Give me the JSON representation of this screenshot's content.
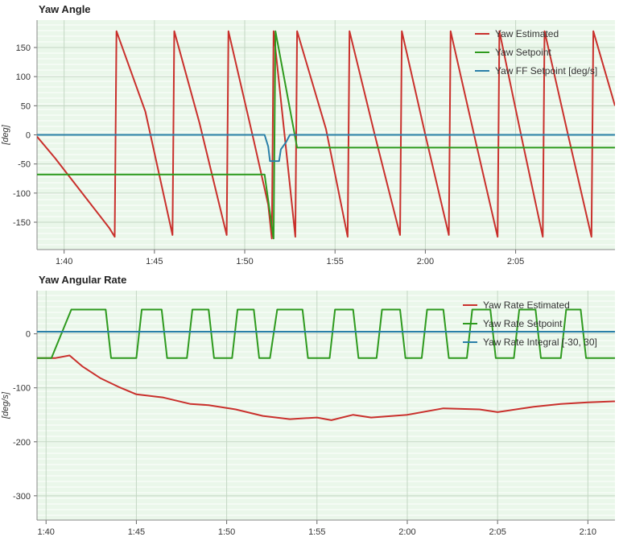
{
  "chart_data": [
    {
      "type": "line",
      "title": "Yaw Angle",
      "ylabel": "[deg]",
      "xlabel": "",
      "xlim": [
        "1:38.5",
        "2:10.5"
      ],
      "ylim": [
        -197,
        197
      ],
      "yticks": [
        150,
        100,
        50,
        0,
        -50,
        -100,
        -150
      ],
      "xticks": [
        "1:40",
        "1:45",
        "1:50",
        "1:55",
        "2:00",
        "2:05"
      ],
      "grid": true,
      "legend_position": "top-right",
      "series": [
        {
          "name": "Yaw Estimated",
          "color": "#c9302c",
          "x": [
            "1:38.5",
            "1:39.5",
            "1:40.5",
            "1:41.5",
            "1:42.5",
            "1:42.8",
            "1:42.9",
            "1:44.5",
            "1:46.0",
            "1:46.1",
            "1:47.5",
            "1:49.0",
            "1:49.1",
            "1:50.5",
            "1:51.3",
            "1:51.5",
            "1:51.6",
            "1:52.8",
            "1:52.9",
            "1:54.5",
            "1:55.7",
            "1:55.8",
            "1:57.2",
            "1:58.6",
            "1:58.7",
            "2:00.0",
            "2:01.3",
            "2:01.4",
            "2:02.7",
            "2:04.0",
            "2:04.1",
            "2:05.3",
            "2:06.5",
            "2:06.6",
            "2:07.9",
            "2:09.2",
            "2:09.3",
            "2:10.5"
          ],
          "y": [
            -3,
            -40,
            -80,
            -120,
            -160,
            -175,
            178,
            40,
            -172,
            178,
            20,
            -172,
            178,
            -10,
            -120,
            -178,
            178,
            -175,
            178,
            10,
            -175,
            178,
            0,
            -172,
            178,
            0,
            -172,
            178,
            0,
            -175,
            178,
            0,
            -175,
            178,
            0,
            -175,
            178,
            50
          ]
        },
        {
          "name": "Yaw Setpoint",
          "color": "#2e9a1e",
          "x": [
            "1:38.5",
            "1:51.1",
            "1:51.6",
            "1:51.7",
            "1:52.9",
            "2:10.5"
          ],
          "y": [
            -68,
            -68,
            -178,
            178,
            -22,
            -22
          ]
        },
        {
          "name": "Yaw FF Setpoint [deg/s]",
          "color": "#2a7fa8",
          "x": [
            "1:38.5",
            "1:51.1",
            "1:51.3",
            "1:51.4",
            "1:51.9",
            "1:52.0",
            "1:52.3",
            "1:52.5",
            "2:10.5"
          ],
          "y": [
            0,
            0,
            -20,
            -45,
            -45,
            -25,
            -12,
            0,
            0
          ]
        }
      ]
    },
    {
      "type": "line",
      "title": "Yaw Angular Rate",
      "ylabel": "[deg/s]",
      "xlabel": "",
      "xlim": [
        "1:39.5",
        "2:11.5"
      ],
      "ylim": [
        -345,
        80
      ],
      "yticks": [
        0,
        -100,
        -200,
        -300
      ],
      "xticks": [
        "1:40",
        "1:45",
        "1:50",
        "1:55",
        "2:00",
        "2:05",
        "2:10"
      ],
      "grid": true,
      "legend_position": "top-right",
      "series": [
        {
          "name": "Yaw Rate Estimated",
          "color": "#c9302c",
          "x": [
            "1:39.5",
            "1:40.5",
            "1:41.3",
            "1:42.0",
            "1:43.0",
            "1:44.0",
            "1:45.0",
            "1:46.5",
            "1:48.0",
            "1:49.0",
            "1:50.5",
            "1:52.0",
            "1:53.5",
            "1:55.0",
            "1:55.8",
            "1:57.0",
            "1:58.0",
            "2:00.0",
            "2:02.0",
            "2:04.0",
            "2:05.0",
            "2:07.0",
            "2:08.5",
            "2:10.0",
            "2:11.5"
          ],
          "y": [
            -45,
            -45,
            -40,
            -60,
            -82,
            -98,
            -112,
            -118,
            -130,
            -132,
            -140,
            -152,
            -158,
            -155,
            -160,
            -150,
            -155,
            -150,
            -138,
            -140,
            -145,
            -135,
            -130,
            -127,
            -125
          ]
        },
        {
          "name": "Yaw Rate Setpoint",
          "color": "#2e9a1e",
          "x": [
            "1:39.5",
            "1:40.3",
            "1:41.4",
            "1:43.3",
            "1:43.6",
            "1:45.0",
            "1:45.3",
            "1:46.4",
            "1:46.7",
            "1:47.8",
            "1:48.1",
            "1:49.0",
            "1:49.3",
            "1:50.3",
            "1:50.6",
            "1:51.5",
            "1:51.8",
            "1:52.4",
            "1:52.8",
            "1:54.2",
            "1:54.5",
            "1:55.7",
            "1:56.0",
            "1:57.0",
            "1:57.3",
            "1:58.3",
            "1:58.6",
            "1:59.6",
            "1:59.9",
            "2:00.8",
            "2:01.1",
            "2:02.0",
            "2:02.3",
            "2:03.3",
            "2:03.6",
            "2:04.6",
            "2:04.9",
            "2:05.9",
            "2:06.2",
            "2:07.1",
            "2:07.4",
            "2:08.5",
            "2:08.8",
            "2:09.6",
            "2:09.9",
            "2:11.5"
          ],
          "y": [
            -45,
            -45,
            45,
            45,
            -45,
            -45,
            45,
            45,
            -45,
            -45,
            45,
            45,
            -45,
            -45,
            45,
            45,
            -45,
            -45,
            45,
            45,
            -45,
            -45,
            45,
            45,
            -45,
            -45,
            45,
            45,
            -45,
            -45,
            45,
            45,
            -45,
            -45,
            45,
            45,
            -45,
            -45,
            45,
            45,
            -45,
            -45,
            45,
            45,
            -45,
            -45
          ]
        },
        {
          "name": "Yaw Rate Integral [-30, 30]",
          "color": "#2a7fa8",
          "x": [
            "1:39.5",
            "2:11.5"
          ],
          "y": [
            4,
            4
          ]
        }
      ]
    }
  ]
}
